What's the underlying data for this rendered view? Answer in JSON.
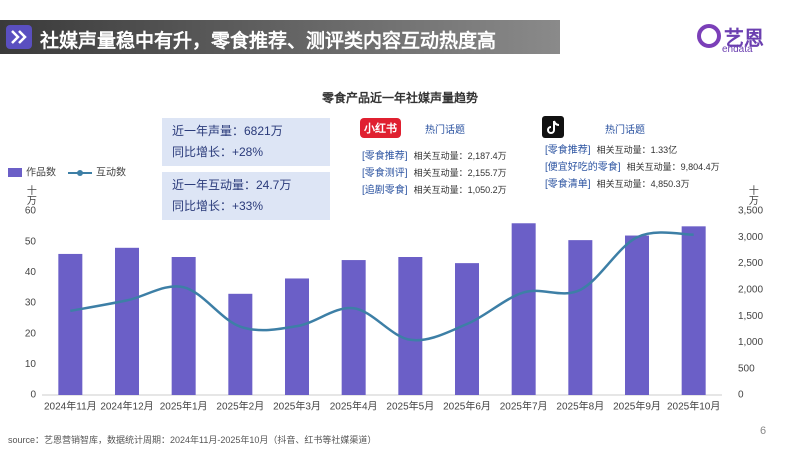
{
  "header": {
    "title": "社媒声量稳中有升，零食推荐、测评类内容互动热度高",
    "logo_cn": "艺恩",
    "logo_en": "endata"
  },
  "chart_data": {
    "type": "bar_line",
    "title": "零食产品近一年社媒声量趋势",
    "categories": [
      "2024年11月",
      "2024年12月",
      "2025年1月",
      "2025年2月",
      "2025年3月",
      "2025年4月",
      "2025年5月",
      "2025年6月",
      "2025年7月",
      "2025年8月",
      "2025年9月",
      "2025年10月"
    ],
    "series": [
      {
        "name": "作品数",
        "color": "#6b5fc7",
        "type": "bar",
        "values": [
          46,
          48,
          45,
          33,
          38,
          44,
          45,
          43,
          56,
          50.5,
          52,
          55
        ]
      },
      {
        "name": "互动数",
        "color": "#3d7fa6",
        "type": "line",
        "axis": "y2",
        "values": [
          1600,
          1800,
          2050,
          1300,
          1310,
          1650,
          1050,
          1350,
          1950,
          2000,
          3000,
          3050
        ]
      }
    ],
    "ylim": [
      0,
      60
    ],
    "yticks": [
      0,
      10,
      20,
      30,
      40,
      50,
      60
    ],
    "y_label": "十万",
    "y2lim": [
      0,
      3500
    ],
    "y2ticks": [
      0,
      500,
      {
        "value": 1000,
        "label": "1,000"
      },
      {
        "value": 1500,
        "label": "1,500"
      },
      {
        "value": 2000,
        "label": "2,000"
      },
      {
        "value": 2500,
        "label": "2,500"
      },
      {
        "value": 3000,
        "label": "3,000"
      },
      {
        "value": 3500,
        "label": "3,500"
      }
    ],
    "y2_label": "十万",
    "legend": "top-left",
    "grid": false
  },
  "highlights": [
    {
      "line1": "近一年声量：6821万",
      "line2": "同比增长：+28%"
    },
    {
      "line1": "近一年互动量：24.7万",
      "line2": "同比增长：+33%"
    }
  ],
  "xiaohongshu": {
    "logo": "小红书",
    "heading": "热门话题",
    "topics": [
      {
        "tag": "[零食推荐]",
        "value": "相关互动量：2,187.4万"
      },
      {
        "tag": "[零食测评]",
        "value": "相关互动量：2,155.7万"
      },
      {
        "tag": "[追剧零食]",
        "value": "相关互动量：1,050.2万"
      }
    ]
  },
  "douyin": {
    "heading": "热门话题",
    "topics": [
      {
        "tag": "[零食推荐]",
        "value": "相关互动量：1.33亿"
      },
      {
        "tag": "[便宜好吃的零食]",
        "value": "相关互动量：9,804.4万"
      },
      {
        "tag": "[零食清单]",
        "value": "相关互动量：4,850.3万"
      }
    ]
  },
  "source": "source：艺恩营销智库，数据统计周期：2024年11月-2025年10月（抖音、红书等社媒渠道）",
  "page_number": "6"
}
